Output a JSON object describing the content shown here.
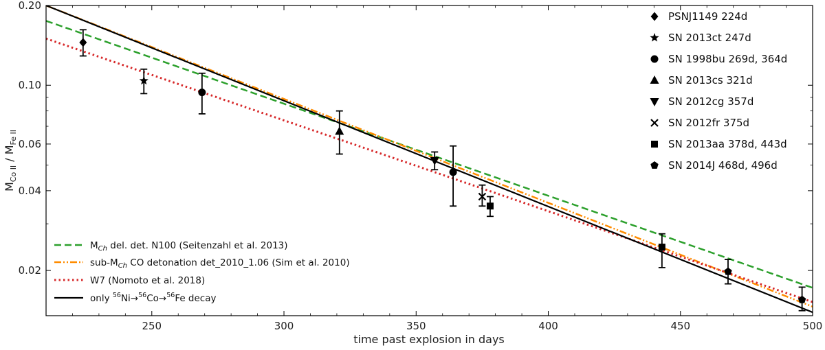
{
  "chart_data": {
    "type": "scatter",
    "xlabel": "time past explosion in days",
    "ylabel": "M",
    "ylabel_sub1": "Co II",
    "ylabel_sep": " / ",
    "ylabel_sub2": "Fe II",
    "x_range": [
      210,
      500
    ],
    "y_range": [
      0.0135,
      0.2
    ],
    "y_scale": "log",
    "x_ticks": [
      250,
      300,
      350,
      400,
      450,
      500
    ],
    "x_tick_labels": [
      "250",
      "300",
      "350",
      "400",
      "450",
      "500"
    ],
    "y_ticks": [
      0.02,
      0.04,
      0.06,
      0.1,
      0.2
    ],
    "y_tick_labels": [
      "0.02",
      "0.04",
      "0.06",
      "0.10",
      "0.20"
    ],
    "points": [
      {
        "label": "PSNJ1149 224d",
        "marker": "diamond",
        "data": [
          {
            "x": 224,
            "y": 0.145,
            "lo": 0.129,
            "hi": 0.162
          }
        ]
      },
      {
        "label": "SN 2013ct 247d",
        "marker": "star",
        "data": [
          {
            "x": 247,
            "y": 0.104,
            "lo": 0.093,
            "hi": 0.115
          }
        ]
      },
      {
        "label": "SN 1998bu 269d, 364d",
        "marker": "circle",
        "data": [
          {
            "x": 269,
            "y": 0.094,
            "lo": 0.078,
            "hi": 0.111
          },
          {
            "x": 364,
            "y": 0.047,
            "lo": 0.035,
            "hi": 0.059
          }
        ]
      },
      {
        "label": "SN 2013cs 321d",
        "marker": "triangle-up",
        "data": [
          {
            "x": 321,
            "y": 0.067,
            "lo": 0.055,
            "hi": 0.08
          }
        ]
      },
      {
        "label": "SN 2012cg 357d",
        "marker": "triangle-down",
        "data": [
          {
            "x": 357,
            "y": 0.052,
            "lo": 0.048,
            "hi": 0.056
          }
        ]
      },
      {
        "label": "SN 2012fr 375d",
        "marker": "x",
        "data": [
          {
            "x": 375,
            "y": 0.038,
            "lo": 0.035,
            "hi": 0.042
          }
        ]
      },
      {
        "label": "SN 2013aa 378d, 443d",
        "marker": "square",
        "data": [
          {
            "x": 378,
            "y": 0.035,
            "lo": 0.032,
            "hi": 0.038
          },
          {
            "x": 443,
            "y": 0.0245,
            "lo": 0.0205,
            "hi": 0.0275
          }
        ]
      },
      {
        "label": "SN 2014J 468d, 496d",
        "marker": "pentagon",
        "data": [
          {
            "x": 468,
            "y": 0.0198,
            "lo": 0.0178,
            "hi": 0.022
          },
          {
            "x": 496,
            "y": 0.0155,
            "lo": 0.0141,
            "hi": 0.0173
          }
        ]
      }
    ],
    "series": [
      {
        "name": "N100",
        "legend_prefix": "M",
        "legend_sub": "Ch",
        "legend_rest": " del. det. N100 (Seitenzahl et al. 2013)",
        "color": "#2ca02c",
        "style": "dashed",
        "x": [
          210,
          500
        ],
        "y": [
          0.175,
          0.0172
        ]
      },
      {
        "name": "det_2010_1.06",
        "legend_prefix": "sub-M",
        "legend_sub": "Ch",
        "legend_rest": " CO detonation det_2010_1.06 (Sim et al. 2010)",
        "color": "#ff8c00",
        "style": "dashdotdot",
        "x": [
          210,
          500
        ],
        "y": [
          0.2,
          0.0146
        ]
      },
      {
        "name": "W7",
        "legend_text": "W7 (Nomoto et al. 2018)",
        "color": "#d62728",
        "style": "dotted",
        "x": [
          210,
          500
        ],
        "y": [
          0.15,
          0.0152
        ]
      },
      {
        "name": "decay",
        "legend_pre": "only ",
        "legend_sup1": "56",
        "legend_t1": "Ni",
        "legend_arrow1": "→",
        "legend_sup2": "56",
        "legend_t2": "Co",
        "legend_arrow2": "→",
        "legend_sup3": "56",
        "legend_t3": "Fe decay",
        "color": "#000000",
        "style": "solid",
        "x": [
          210,
          500
        ],
        "y": [
          0.2,
          0.0139
        ]
      }
    ]
  }
}
